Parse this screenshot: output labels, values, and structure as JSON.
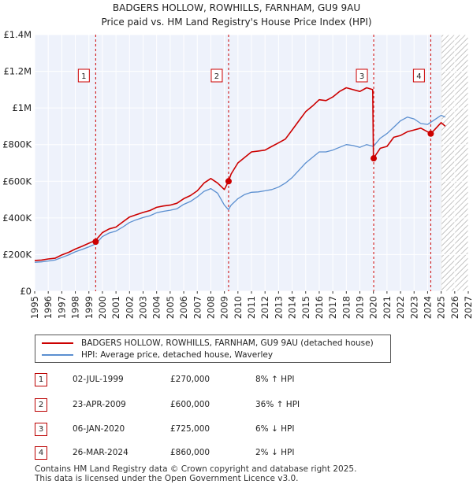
{
  "chart_data": {
    "type": "line",
    "title": "BADGERS HOLLOW, ROWHILLS, FARNHAM, GU9 9AU",
    "subtitle": "Price paid vs. HM Land Registry's House Price Index (HPI)",
    "xlim": [
      1995,
      2027
    ],
    "ylim": [
      0,
      1400000
    ],
    "x_ticks": [
      1995,
      1996,
      1997,
      1998,
      1999,
      2000,
      2001,
      2002,
      2003,
      2004,
      2005,
      2006,
      2007,
      2008,
      2009,
      2010,
      2011,
      2012,
      2013,
      2014,
      2015,
      2016,
      2017,
      2018,
      2019,
      2020,
      2021,
      2022,
      2023,
      2024,
      2025,
      2026,
      2027
    ],
    "y_ticks": [
      {
        "value": 0,
        "label": "£0"
      },
      {
        "value": 200000,
        "label": "£200K"
      },
      {
        "value": 400000,
        "label": "£400K"
      },
      {
        "value": 600000,
        "label": "£600K"
      },
      {
        "value": 800000,
        "label": "£800K"
      },
      {
        "value": 1000000,
        "label": "£1M"
      },
      {
        "value": 1200000,
        "label": "£1.2M"
      },
      {
        "value": 1400000,
        "label": "£1.4M"
      }
    ],
    "forecast_start": 2025.0,
    "series": [
      {
        "name": "BADGERS HOLLOW, ROWHILLS, FARNHAM, GU9 9AU (detached house)",
        "color": "#cc0000",
        "x": [
          1995.0,
          1995.5,
          1996.0,
          1996.5,
          1997.0,
          1997.5,
          1998.0,
          1998.5,
          1999.0,
          1999.5,
          2000.0,
          2000.5,
          2001.0,
          2001.5,
          2002.0,
          2002.5,
          2003.0,
          2003.5,
          2004.0,
          2004.5,
          2005.0,
          2005.5,
          2006.0,
          2006.5,
          2007.0,
          2007.5,
          2008.0,
          2008.5,
          2009.0,
          2009.3,
          2009.5,
          2010.0,
          2010.5,
          2011.0,
          2011.5,
          2012.0,
          2012.5,
          2013.0,
          2013.5,
          2014.0,
          2014.5,
          2015.0,
          2015.5,
          2016.0,
          2016.5,
          2017.0,
          2017.5,
          2018.0,
          2018.5,
          2019.0,
          2019.5,
          2019.95,
          2020.0,
          2020.5,
          2021.0,
          2021.5,
          2022.0,
          2022.5,
          2023.0,
          2023.5,
          2024.0,
          2024.23,
          2024.5,
          2025.0,
          2025.3
        ],
        "y": [
          168000,
          170000,
          176000,
          180000,
          198000,
          212000,
          230000,
          245000,
          262000,
          278000,
          320000,
          340000,
          350000,
          378000,
          405000,
          418000,
          430000,
          440000,
          458000,
          465000,
          470000,
          480000,
          505000,
          522000,
          548000,
          590000,
          615000,
          590000,
          555000,
          600000,
          640000,
          700000,
          730000,
          760000,
          765000,
          770000,
          790000,
          810000,
          830000,
          880000,
          930000,
          980000,
          1010000,
          1045000,
          1040000,
          1060000,
          1090000,
          1110000,
          1100000,
          1090000,
          1110000,
          1100000,
          725000,
          780000,
          790000,
          840000,
          850000,
          870000,
          880000,
          890000,
          870000,
          860000,
          880000,
          920000,
          900000
        ]
      },
      {
        "name": "HPI: Average price, detached house, Waverley",
        "color": "#5b8fd0",
        "x": [
          1995.0,
          1995.5,
          1996.0,
          1996.5,
          1997.0,
          1997.5,
          1998.0,
          1998.5,
          1999.0,
          1999.5,
          2000.0,
          2000.5,
          2001.0,
          2001.5,
          2002.0,
          2002.5,
          2003.0,
          2003.5,
          2004.0,
          2004.5,
          2005.0,
          2005.5,
          2006.0,
          2006.5,
          2007.0,
          2007.5,
          2008.0,
          2008.5,
          2009.0,
          2009.3,
          2009.5,
          2010.0,
          2010.5,
          2011.0,
          2011.5,
          2012.0,
          2012.5,
          2013.0,
          2013.5,
          2014.0,
          2014.5,
          2015.0,
          2015.5,
          2016.0,
          2016.5,
          2017.0,
          2017.5,
          2018.0,
          2018.5,
          2019.0,
          2019.5,
          2020.0,
          2020.5,
          2021.0,
          2021.5,
          2022.0,
          2022.5,
          2023.0,
          2023.5,
          2024.0,
          2024.5,
          2025.0,
          2025.3
        ],
        "y": [
          158000,
          160000,
          165000,
          170000,
          184000,
          198000,
          215000,
          228000,
          242000,
          258000,
          298000,
          318000,
          328000,
          350000,
          375000,
          390000,
          402000,
          412000,
          428000,
          436000,
          442000,
          450000,
          474000,
          490000,
          515000,
          545000,
          560000,
          535000,
          470000,
          445000,
          470000,
          505000,
          528000,
          540000,
          542000,
          548000,
          555000,
          568000,
          590000,
          620000,
          660000,
          700000,
          730000,
          760000,
          760000,
          770000,
          785000,
          800000,
          795000,
          785000,
          800000,
          790000,
          835000,
          860000,
          895000,
          930000,
          950000,
          940000,
          915000,
          910000,
          935000,
          960000,
          950000
        ]
      }
    ],
    "transactions": [
      {
        "id": "1",
        "x": 1999.5,
        "y": 270000,
        "date": "02-JUL-1999",
        "price": "£270,000",
        "hpi": "8% ↑ HPI"
      },
      {
        "id": "2",
        "x": 2009.31,
        "y": 600000,
        "date": "23-APR-2009",
        "price": "£600,000",
        "hpi": "36% ↑ HPI"
      },
      {
        "id": "3",
        "x": 2020.02,
        "y": 725000,
        "date": "06-JAN-2020",
        "price": "£725,000",
        "hpi": "6% ↓ HPI"
      },
      {
        "id": "4",
        "x": 2024.23,
        "y": 860000,
        "date": "26-MAR-2024",
        "price": "£860,000",
        "hpi": "2% ↓ HPI"
      }
    ]
  },
  "footer": {
    "line1": "Contains HM Land Registry data © Crown copyright and database right 2025.",
    "line2": "This data is licensed under the Open Government Licence v3.0."
  },
  "colors": {
    "plot_bg": "#eef2fb",
    "grid": "#ffffff",
    "vline": "#cc0000",
    "price_line": "#cc0000",
    "hpi_line": "#5b8fd0"
  }
}
